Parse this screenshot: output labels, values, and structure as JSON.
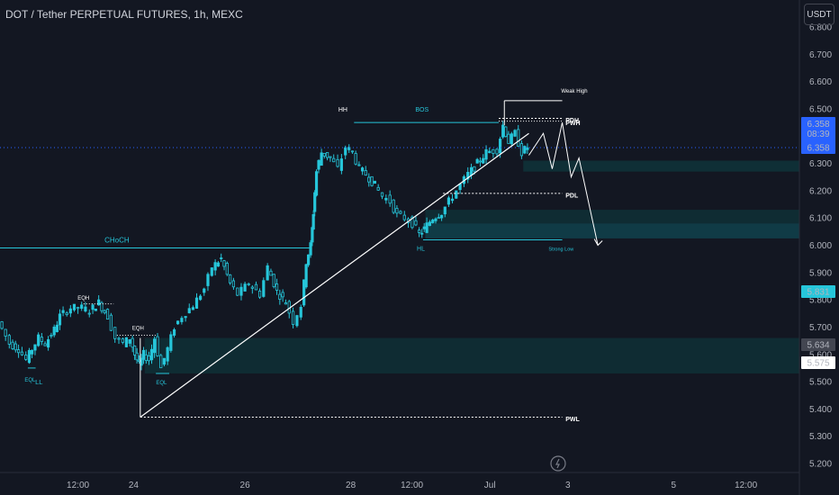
{
  "title": "DOT / Tether PERPETUAL FUTURES, 1h, MEXC",
  "currency": "USDT",
  "chart_data": {
    "type": "candlestick",
    "y_axis": {
      "ylim": [
        5.17,
        6.87
      ],
      "ticks": [
        "6.800",
        "6.700",
        "6.600",
        "6.500",
        "6.400",
        "6.300",
        "6.200",
        "6.100",
        "6.000",
        "5.900",
        "5.800",
        "5.700",
        "5.600",
        "5.500",
        "5.400",
        "5.300",
        "5.200"
      ],
      "tick_values": [
        6.8,
        6.7,
        6.6,
        6.5,
        6.4,
        6.3,
        6.2,
        6.1,
        6.0,
        5.9,
        5.8,
        5.7,
        5.6,
        5.5,
        5.4,
        5.3,
        5.2
      ]
    },
    "x_axis": {
      "labels": [
        "12:00",
        "24",
        "26",
        "28",
        "12:00",
        "Jul",
        "3",
        "5",
        "12:00"
      ],
      "positions": [
        0.5,
        1,
        2,
        2.95,
        3.5,
        4.2,
        4.9,
        5.85,
        6.5
      ],
      "xlim": [
        -0.2,
        6.98
      ]
    },
    "price_series": [
      [
        -0.2,
        5.72
      ],
      [
        -0.1,
        5.64
      ],
      [
        -0.02,
        5.62
      ],
      [
        0.05,
        5.58
      ],
      [
        0.1,
        5.62
      ],
      [
        0.16,
        5.66
      ],
      [
        0.22,
        5.64
      ],
      [
        0.3,
        5.69
      ],
      [
        0.35,
        5.74
      ],
      [
        0.45,
        5.77
      ],
      [
        0.55,
        5.77
      ],
      [
        0.62,
        5.76
      ],
      [
        0.7,
        5.79
      ],
      [
        0.78,
        5.74
      ],
      [
        0.85,
        5.66
      ],
      [
        0.92,
        5.64
      ],
      [
        0.98,
        5.66
      ],
      [
        1.02,
        5.6
      ],
      [
        1.06,
        5.56
      ],
      [
        1.1,
        5.6
      ],
      [
        1.15,
        5.58
      ],
      [
        1.2,
        5.66
      ],
      [
        1.26,
        5.55
      ],
      [
        1.32,
        5.62
      ],
      [
        1.38,
        5.7
      ],
      [
        1.45,
        5.74
      ],
      [
        1.55,
        5.78
      ],
      [
        1.65,
        5.84
      ],
      [
        1.72,
        5.92
      ],
      [
        1.8,
        5.95
      ],
      [
        1.88,
        5.86
      ],
      [
        1.95,
        5.82
      ],
      [
        2.05,
        5.86
      ],
      [
        2.15,
        5.82
      ],
      [
        2.22,
        5.92
      ],
      [
        2.3,
        5.83
      ],
      [
        2.38,
        5.79
      ],
      [
        2.45,
        5.72
      ],
      [
        2.52,
        5.78
      ],
      [
        2.56,
        5.94
      ],
      [
        2.6,
        6.0
      ],
      [
        2.62,
        6.12
      ],
      [
        2.65,
        6.27
      ],
      [
        2.7,
        6.34
      ],
      [
        2.78,
        6.32
      ],
      [
        2.85,
        6.28
      ],
      [
        2.92,
        6.36
      ],
      [
        2.98,
        6.34
      ],
      [
        3.04,
        6.28
      ],
      [
        3.1,
        6.26
      ],
      [
        3.18,
        6.22
      ],
      [
        3.25,
        6.18
      ],
      [
        3.32,
        6.16
      ],
      [
        3.38,
        6.11
      ],
      [
        3.45,
        6.1
      ],
      [
        3.52,
        6.08
      ],
      [
        3.58,
        6.04
      ],
      [
        3.62,
        6.06
      ],
      [
        3.7,
        6.1
      ],
      [
        3.78,
        6.12
      ],
      [
        3.88,
        6.18
      ],
      [
        3.95,
        6.22
      ],
      [
        4.02,
        6.26
      ],
      [
        4.1,
        6.3
      ],
      [
        4.18,
        6.34
      ],
      [
        4.28,
        6.35
      ],
      [
        4.33,
        6.44
      ],
      [
        4.38,
        6.38
      ],
      [
        4.44,
        6.41
      ],
      [
        4.5,
        6.34
      ],
      [
        4.55,
        6.36
      ]
    ],
    "current_price": 6.358,
    "price_labels": [
      {
        "value": 6.358,
        "text": "6.358",
        "sub": "08:39",
        "bg": "#2962ff",
        "fg": "#ffffff"
      },
      {
        "value": 6.358,
        "text": "6.358",
        "bg": "#2962ff",
        "fg": "#ffffff"
      },
      {
        "value": 5.831,
        "text": "5.831",
        "bg": "#26c6da",
        "fg": "#131722"
      },
      {
        "value": 5.634,
        "text": "5.634",
        "bg": "#434651",
        "fg": "#ffffff"
      },
      {
        "value": 5.575,
        "text": "5.575",
        "bg": "#ffffff",
        "fg": "#131722"
      }
    ],
    "annotations": [
      {
        "text": "CHoCH",
        "color": "#26c6da"
      },
      {
        "text": "EQH",
        "color": "#ffffff"
      },
      {
        "text": "EQH",
        "color": "#ffffff"
      },
      {
        "text": "EQL",
        "color": "#26c6da"
      },
      {
        "text": "LL",
        "color": "#26c6da"
      },
      {
        "text": "EQL",
        "color": "#26c6da"
      },
      {
        "text": "HH",
        "color": "#ffffff"
      },
      {
        "text": "BOS",
        "color": "#26c6da"
      },
      {
        "text": "HL",
        "color": "#26c6da"
      },
      {
        "text": "Weak High",
        "color": "#ffffff"
      },
      {
        "text": "PDH",
        "color": "#ffffff"
      },
      {
        "text": "PWH",
        "color": "#ffffff"
      },
      {
        "text": "PDL",
        "color": "#ffffff"
      },
      {
        "text": "Strong Low",
        "color": "#26c6da"
      },
      {
        "text": "PWL",
        "color": "#ffffff"
      }
    ],
    "colors": {
      "background": "#131722",
      "candle": "#26c6da",
      "wick": "#26c6da",
      "zone": "#0e3a3f",
      "line": "#ffffff",
      "axis_text": "#b2b5be"
    }
  }
}
